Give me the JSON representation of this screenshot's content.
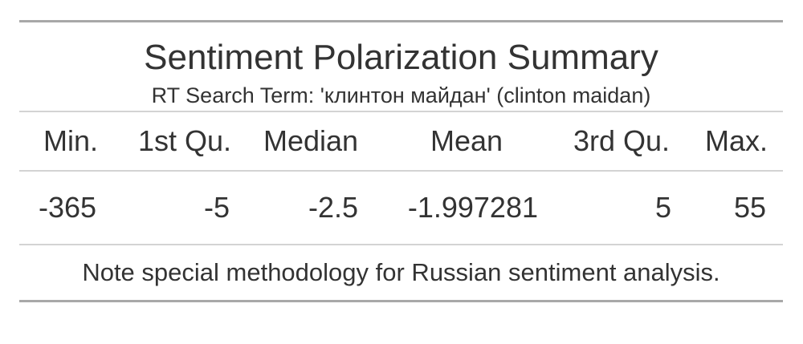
{
  "table": {
    "title": "Sentiment Polarization Summary",
    "subtitle": "RT Search Term: 'клинтон майдан' (clinton maidan)",
    "columns": [
      "Min.",
      "1st Qu.",
      "Median",
      "Mean",
      "3rd Qu.",
      "Max."
    ],
    "values": [
      "-365",
      "-5",
      "-2.5",
      "-1.997281",
      "5",
      "55"
    ],
    "footnote": "Note special methodology for Russian sentiment analysis."
  }
}
